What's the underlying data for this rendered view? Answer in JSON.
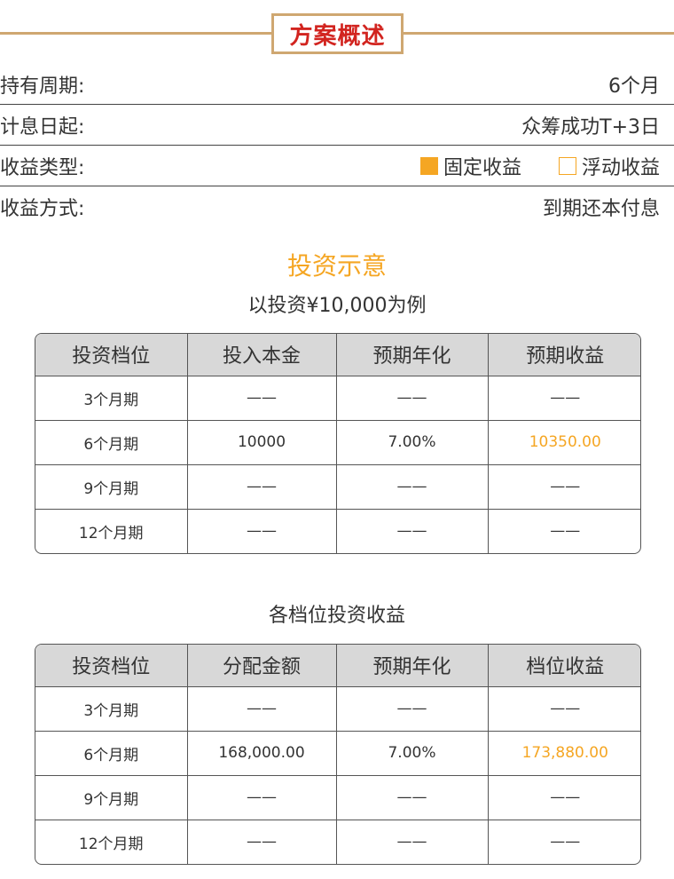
{
  "header": {
    "title": "方案概述"
  },
  "info": {
    "holding_period": {
      "label": "持有周期:",
      "value": "6个月"
    },
    "interest_start": {
      "label": "计息日起:",
      "value": "众筹成功T+3日"
    },
    "income_type": {
      "label": "收益类型:",
      "options": [
        {
          "label": "固定收益",
          "selected": true
        },
        {
          "label": "浮动收益",
          "selected": false
        }
      ]
    },
    "income_method": {
      "label": "收益方式:",
      "value": "到期还本付息"
    }
  },
  "illustration": {
    "title": "投资示意",
    "subtitle": "以投资¥10,000为例",
    "headers": [
      "投资档位",
      "投入本金",
      "预期年化",
      "预期收益"
    ],
    "rows": [
      [
        "3个月期",
        "——",
        "——",
        "——"
      ],
      [
        "6个月期",
        "10000",
        "7.00%",
        "10350.00"
      ],
      [
        "9个月期",
        "——",
        "——",
        "——"
      ],
      [
        "12个月期",
        "——",
        "——",
        "——"
      ]
    ]
  },
  "tiers": {
    "subtitle": "各档位投资收益",
    "headers": [
      "投资档位",
      "分配金额",
      "预期年化",
      "档位收益"
    ],
    "rows": [
      [
        "3个月期",
        "——",
        "——",
        "——"
      ],
      [
        "6个月期",
        "168,000.00",
        "7.00%",
        "173,880.00"
      ],
      [
        "9个月期",
        "——",
        "——",
        "——"
      ],
      [
        "12个月期",
        "——",
        "——",
        "——"
      ]
    ]
  },
  "colors": {
    "accent": "#f5a623",
    "header_red": "#d2241f",
    "gold_border": "#cfa771"
  }
}
